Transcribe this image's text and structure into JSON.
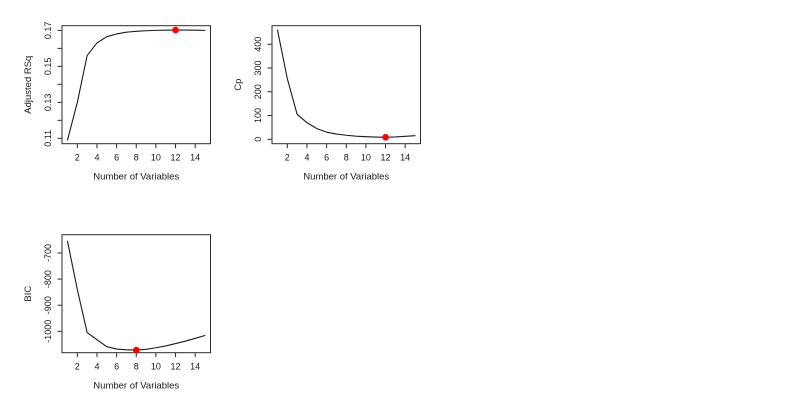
{
  "figure": {
    "background_color": "#ffffff",
    "axis_color": "#2b2b2b",
    "line_color": "#1a1a1a",
    "text_color": "#1a1a1a",
    "highlight_color": "#ff0000"
  },
  "chart_data": [
    {
      "type": "line",
      "id": "adjusted-rsq",
      "xlabel": "Number of Variables",
      "ylabel": "Adjusted RSq",
      "x": [
        1,
        2,
        3,
        4,
        5,
        6,
        7,
        8,
        9,
        10,
        11,
        12,
        13,
        14,
        15
      ],
      "y": [
        0.109,
        0.13,
        0.156,
        0.163,
        0.1665,
        0.168,
        0.169,
        0.1695,
        0.1698,
        0.17,
        0.1701,
        0.1702,
        0.1702,
        0.1701,
        0.17
      ],
      "xlim": [
        0.44,
        15.56
      ],
      "ylim": [
        0.107,
        0.1726
      ],
      "xticks": {
        "values": [
          2,
          4,
          6,
          8,
          10,
          12,
          14
        ],
        "labels": [
          "2",
          "4",
          "6",
          "8",
          "10",
          "12",
          "14"
        ]
      },
      "yticks": {
        "values": [
          0.11,
          0.13,
          0.15,
          0.17
        ],
        "labels": [
          "0.11",
          "0.13",
          "0.15",
          "0.17"
        ]
      },
      "yticks_minor": [
        0.12,
        0.14,
        0.16
      ],
      "highlight_point": {
        "x": 12,
        "y": 0.1702
      },
      "grid": false,
      "legend": null
    },
    {
      "type": "line",
      "id": "cp",
      "xlabel": "Number of Variables",
      "ylabel": "Cp",
      "x": [
        1,
        2,
        3,
        4,
        5,
        6,
        7,
        8,
        9,
        10,
        11,
        12,
        13,
        14,
        15
      ],
      "y": [
        460,
        255,
        105,
        70,
        45,
        30,
        22,
        17,
        13,
        11,
        9.5,
        8.5,
        10,
        12.5,
        15
      ],
      "xlim": [
        0.44,
        15.56
      ],
      "ylim": [
        -18.6,
        478
      ],
      "xticks": {
        "values": [
          2,
          4,
          6,
          8,
          10,
          12,
          14
        ],
        "labels": [
          "2",
          "4",
          "6",
          "8",
          "10",
          "12",
          "14"
        ]
      },
      "yticks": {
        "values": [
          0,
          100,
          200,
          300,
          400
        ],
        "labels": [
          "0",
          "100",
          "200",
          "300",
          "400"
        ]
      },
      "yticks_minor": [],
      "highlight_point": {
        "x": 12,
        "y": 8.5
      },
      "grid": false,
      "legend": null
    },
    {
      "type": "line",
      "id": "bic",
      "xlabel": "Number of Variables",
      "ylabel": "BIC",
      "x": [
        1,
        2,
        3,
        4,
        5,
        6,
        7,
        8,
        9,
        10,
        11,
        12,
        13,
        14,
        15
      ],
      "y": [
        -655,
        -840,
        -1005,
        -1032,
        -1059,
        -1068,
        -1071,
        -1072,
        -1069,
        -1063,
        -1056,
        -1047,
        -1038,
        -1027,
        -1016
      ],
      "xlim": [
        0.44,
        15.56
      ],
      "ylim": [
        -1082,
        -630
      ],
      "xticks": {
        "values": [
          2,
          4,
          6,
          8,
          10,
          12,
          14
        ],
        "labels": [
          "2",
          "4",
          "6",
          "8",
          "10",
          "12",
          "14"
        ]
      },
      "yticks": {
        "values": [
          -1000,
          -900,
          -800,
          -700
        ],
        "labels": [
          "-1000",
          "-900",
          "-800",
          "-700"
        ]
      },
      "yticks_minor": [],
      "highlight_point": {
        "x": 8,
        "y": -1072
      },
      "grid": false,
      "legend": null
    }
  ]
}
